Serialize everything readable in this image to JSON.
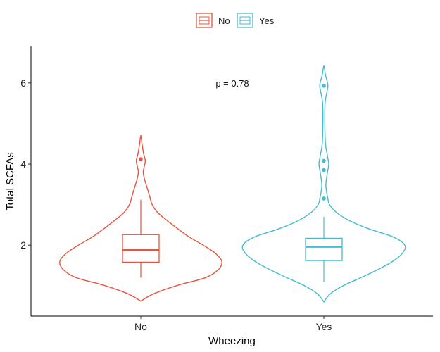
{
  "chart_data": {
    "type": "violin",
    "xlabel": "Wheezing",
    "ylabel": "Total SCFAs",
    "categories": [
      "No",
      "Yes"
    ],
    "ylim": [
      0.25,
      6.9
    ],
    "yticks": [
      2,
      4,
      6
    ],
    "grid": false,
    "legend": {
      "placement": "top",
      "entries": [
        {
          "name": "No",
          "color": "#E8543D"
        },
        {
          "name": "Yes",
          "color": "#46BCD0"
        }
      ]
    },
    "annotation": {
      "text": "p = 0.78",
      "x": 1.5,
      "y": 6.0
    },
    "groups": [
      {
        "name": "No",
        "color": "#E8543D",
        "box": {
          "q1": 1.58,
          "median": 1.88,
          "q3": 2.26,
          "whisker_low": 1.2,
          "whisker_high": 3.12
        },
        "outliers": [
          4.12
        ],
        "violin_profile": [
          [
            0.62,
            0.0
          ],
          [
            0.8,
            0.16
          ],
          [
            1.0,
            0.44
          ],
          [
            1.2,
            0.8
          ],
          [
            1.4,
            0.96
          ],
          [
            1.6,
            1.0
          ],
          [
            1.8,
            0.92
          ],
          [
            2.0,
            0.77
          ],
          [
            2.2,
            0.6
          ],
          [
            2.4,
            0.46
          ],
          [
            2.6,
            0.33
          ],
          [
            2.8,
            0.21
          ],
          [
            3.0,
            0.14
          ],
          [
            3.2,
            0.11
          ],
          [
            3.4,
            0.08
          ],
          [
            3.6,
            0.05
          ],
          [
            3.8,
            0.03
          ],
          [
            4.0,
            0.05
          ],
          [
            4.1,
            0.055
          ],
          [
            4.25,
            0.035
          ],
          [
            4.5,
            0.015
          ],
          [
            4.7,
            0.0
          ]
        ]
      },
      {
        "name": "Yes",
        "color": "#46BCD0",
        "box": {
          "q1": 1.62,
          "median": 1.96,
          "q3": 2.17,
          "whisker_low": 1.1,
          "whisker_high": 2.7
        },
        "outliers": [
          3.15,
          3.85,
          4.08,
          5.93
        ],
        "violin_profile": [
          [
            0.6,
            0.0
          ],
          [
            0.8,
            0.08
          ],
          [
            1.0,
            0.24
          ],
          [
            1.2,
            0.46
          ],
          [
            1.4,
            0.67
          ],
          [
            1.6,
            0.85
          ],
          [
            1.8,
            0.97
          ],
          [
            2.0,
            1.0
          ],
          [
            2.2,
            0.86
          ],
          [
            2.4,
            0.56
          ],
          [
            2.6,
            0.32
          ],
          [
            2.8,
            0.16
          ],
          [
            3.0,
            0.07
          ],
          [
            3.15,
            0.05
          ],
          [
            3.3,
            0.035
          ],
          [
            3.5,
            0.025
          ],
          [
            3.8,
            0.045
          ],
          [
            4.0,
            0.06
          ],
          [
            4.2,
            0.045
          ],
          [
            4.5,
            0.02
          ],
          [
            5.0,
            0.012
          ],
          [
            5.5,
            0.015
          ],
          [
            5.8,
            0.04
          ],
          [
            5.95,
            0.05
          ],
          [
            6.2,
            0.02
          ],
          [
            6.42,
            0.0
          ]
        ]
      }
    ]
  }
}
